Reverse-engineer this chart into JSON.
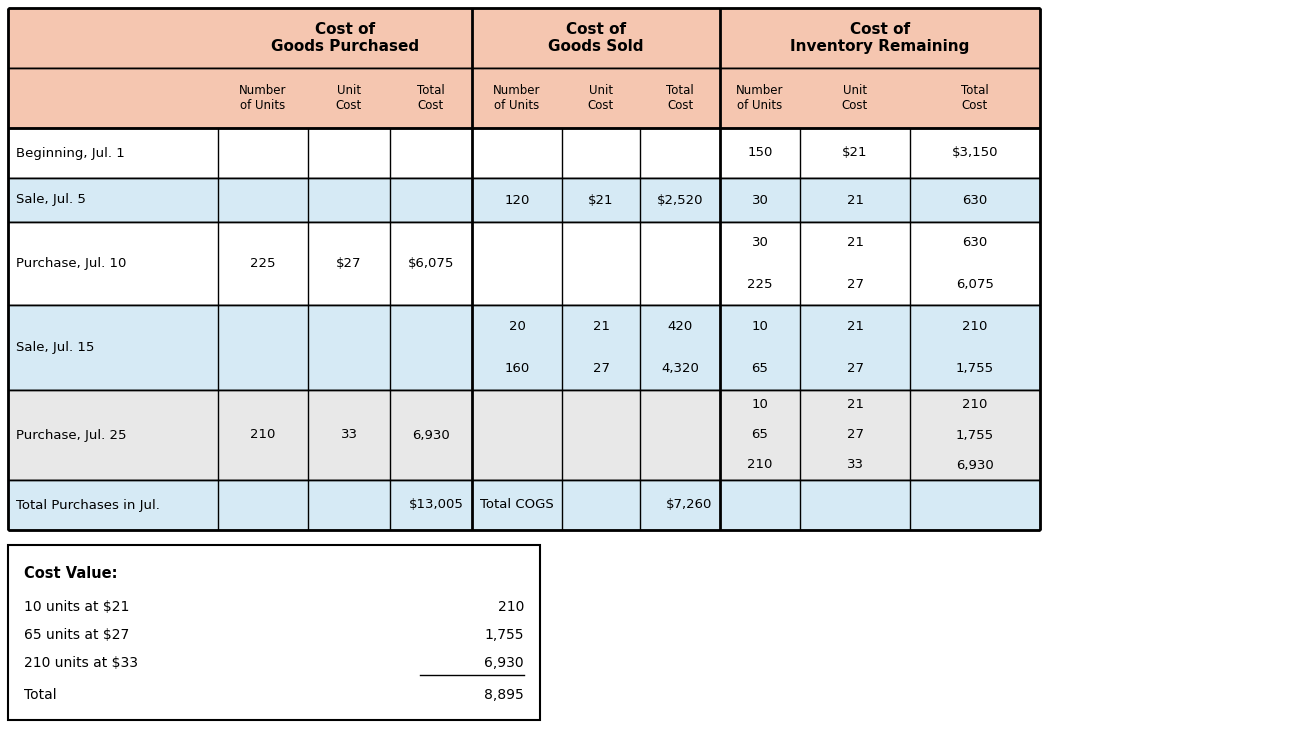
{
  "header_bg": "#f5c6b0",
  "row_bg_white": "#ffffff",
  "row_bg_light_blue": "#d6eaf5",
  "row_bg_light_gray": "#e8e8e8",
  "border_color": "#000000",
  "sub_headers": [
    "Number\nof Units",
    "Unit\nCost",
    "Total\nCost",
    "Number\nof Units",
    "Unit\nCost",
    "Total\nCost",
    "Number\nof Units",
    "Unit\nCost",
    "Total\nCost"
  ],
  "cost_value_box": {
    "title": "Cost Value:",
    "lines": [
      {
        "label": "10 units at $21",
        "value": "210"
      },
      {
        "label": "65 units at $27",
        "value": "1,755"
      },
      {
        "label": "210 units at $33",
        "value": "6,930"
      },
      {
        "label": "Total",
        "value": "8,895"
      }
    ]
  }
}
